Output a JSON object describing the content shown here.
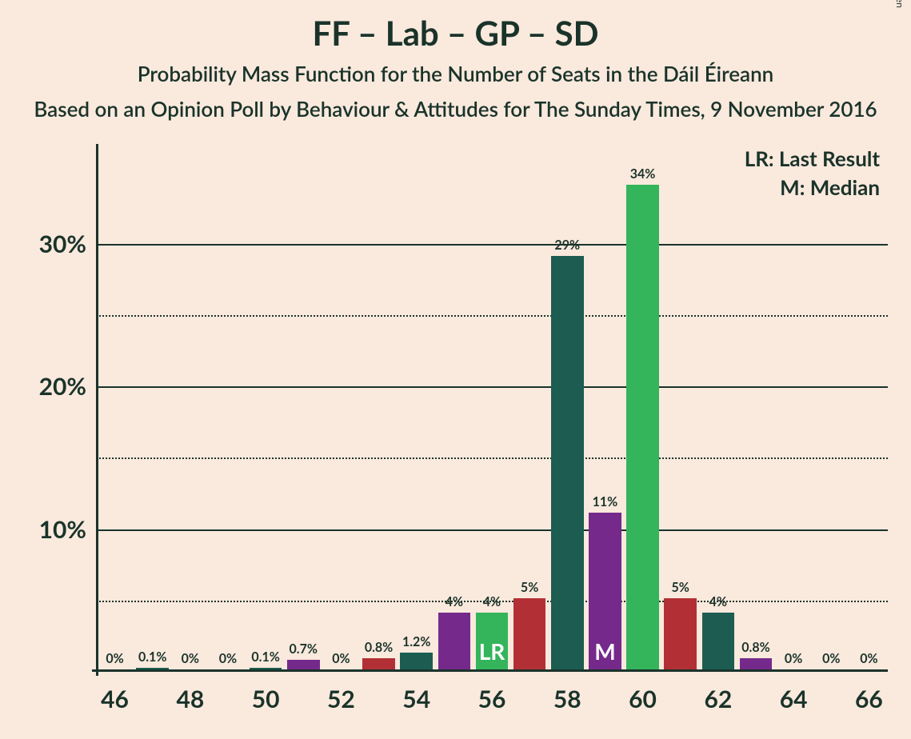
{
  "title": "FF – Lab – GP – SD",
  "subtitle": "Probability Mass Function for the Number of Seats in the Dáil Éireann",
  "subtitle2": "Based on an Opinion Poll by Behaviour & Attitudes for The Sunday Times, 9 November 2016",
  "copyright": "© 2020 Filip van Laenen",
  "legend": {
    "lr": "LR: Last Result",
    "m": "M: Median"
  },
  "chart": {
    "type": "bar",
    "background_color": "#fae9dd",
    "axis_color": "#1a332a",
    "text_color": "#1a332a",
    "title_fontsize": 42,
    "subtitle_fontsize": 26,
    "ytick_fontsize": 30,
    "xtick_fontsize": 30,
    "barlabel_fontsize": 16,
    "ylim": [
      0,
      37
    ],
    "y_major_ticks": [
      10,
      20,
      30
    ],
    "y_minor_ticks": [
      5,
      15,
      25
    ],
    "x_categories": [
      46,
      47,
      48,
      49,
      50,
      51,
      52,
      53,
      54,
      55,
      56,
      57,
      58,
      59,
      60,
      61,
      62,
      63,
      64,
      65,
      66
    ],
    "x_tick_labels": [
      46,
      48,
      50,
      52,
      54,
      56,
      58,
      60,
      62,
      64,
      66
    ],
    "colors": {
      "teal": "#1c5c51",
      "green": "#34b45b",
      "purple": "#752a8b",
      "red": "#b23035"
    },
    "bars": [
      {
        "x": 46,
        "value": 0,
        "label": "0%",
        "color": "teal"
      },
      {
        "x": 47,
        "value": 0.1,
        "label": "0.1%",
        "color": "teal"
      },
      {
        "x": 48,
        "value": 0,
        "label": "0%",
        "color": "teal"
      },
      {
        "x": 49,
        "value": 0,
        "label": "0%",
        "color": "teal"
      },
      {
        "x": 50,
        "value": 0.1,
        "label": "0.1%",
        "color": "teal"
      },
      {
        "x": 51,
        "value": 0.7,
        "label": "0.7%",
        "color": "purple"
      },
      {
        "x": 52,
        "value": 0,
        "label": "0%",
        "color": "teal"
      },
      {
        "x": 53,
        "value": 0.8,
        "label": "0.8%",
        "color": "red"
      },
      {
        "x": 54,
        "value": 1.2,
        "label": "1.2%",
        "color": "teal"
      },
      {
        "x": 55,
        "value": 4,
        "label": "4%",
        "color": "purple"
      },
      {
        "x": 56,
        "value": 4,
        "label": "4%",
        "color": "green",
        "inlabel": "LR"
      },
      {
        "x": 57,
        "value": 5,
        "label": "5%",
        "color": "red"
      },
      {
        "x": 58,
        "value": 29,
        "label": "29%",
        "color": "teal"
      },
      {
        "x": 59,
        "value": 11,
        "label": "11%",
        "color": "purple",
        "inlabel": "M"
      },
      {
        "x": 60,
        "value": 34,
        "label": "34%",
        "color": "green"
      },
      {
        "x": 61,
        "value": 5,
        "label": "5%",
        "color": "red"
      },
      {
        "x": 62,
        "value": 4,
        "label": "4%",
        "color": "teal"
      },
      {
        "x": 63,
        "value": 0.8,
        "label": "0.8%",
        "color": "purple"
      },
      {
        "x": 64,
        "value": 0,
        "label": "0%",
        "color": "teal"
      },
      {
        "x": 65,
        "value": 0,
        "label": "0%",
        "color": "teal"
      },
      {
        "x": 66,
        "value": 0,
        "label": "0%",
        "color": "teal"
      }
    ],
    "bar_width_ratio": 0.86
  }
}
